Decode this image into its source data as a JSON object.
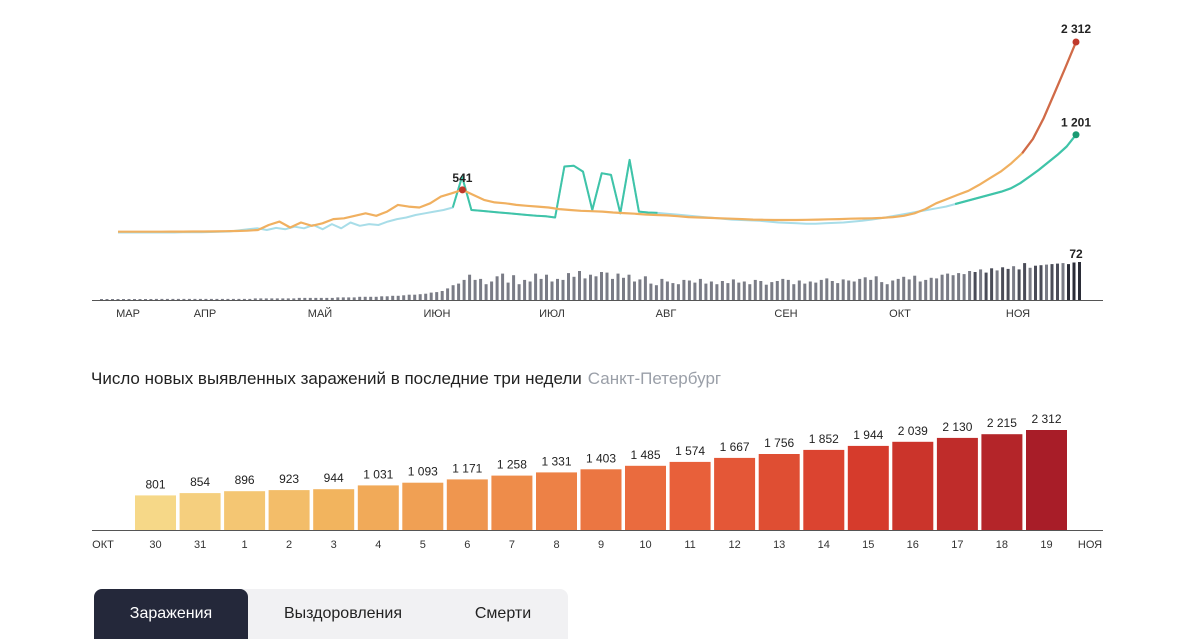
{
  "chart_data": [
    {
      "type": "line",
      "x_axis_labels": [
        "МАР",
        "АПР",
        "МАЙ",
        "ИЮН",
        "ИЮЛ",
        "АВГ",
        "СЕН",
        "ОКТ",
        "НОЯ"
      ],
      "series": [
        {
          "color": "#f0b060",
          "end_color": "#c0392b",
          "values": [
            40,
            40,
            40,
            40,
            40,
            41,
            41,
            42,
            42,
            43,
            45,
            48,
            52,
            60,
            120,
            160,
            90,
            150,
            110,
            140,
            190,
            200,
            230,
            260,
            230,
            280,
            360,
            340,
            330,
            380,
            460,
            500,
            541,
            480,
            420,
            390,
            380,
            360,
            350,
            340,
            330,
            310,
            300,
            290,
            285,
            280,
            270,
            262,
            255,
            245,
            240,
            235,
            225,
            215,
            210,
            205,
            200,
            195,
            190,
            185,
            182,
            180,
            180,
            180,
            182,
            185,
            188,
            190,
            195,
            198,
            200,
            205,
            215,
            230,
            260,
            310,
            380,
            430,
            480,
            530,
            600,
            680,
            760,
            860,
            980,
            1150,
            1400,
            1700,
            2000,
            2312
          ],
          "max_label": "541",
          "max_index": 32,
          "last_label": "2 312"
        },
        {
          "color": "#a8dde8",
          "accent_color": "#3fc4a8",
          "end_color": "#1a9a72",
          "values": [
            30,
            30,
            30,
            30,
            30,
            30,
            30,
            32,
            32,
            34,
            36,
            38,
            42,
            55,
            70,
            80,
            60,
            85,
            70,
            100,
            80,
            120,
            70,
            130,
            80,
            150,
            110,
            130,
            120,
            160,
            190,
            210,
            240,
            260,
            280,
            300,
            330,
            700,
            300,
            290,
            280,
            270,
            260,
            250,
            240,
            230,
            225,
            210,
            820,
            830,
            760,
            300,
            740,
            720,
            260,
            900,
            280,
            270,
            265,
            255,
            245,
            235,
            225,
            215,
            205,
            195,
            185,
            180,
            175,
            170,
            160,
            150,
            145,
            140,
            135,
            135,
            140,
            145,
            150,
            160,
            170,
            185,
            200,
            220,
            240,
            260,
            280,
            300,
            320,
            340,
            370,
            400,
            430,
            460,
            490,
            520,
            560,
            620,
            700,
            780,
            870,
            960,
            1060,
            1201
          ],
          "accent_start": 36,
          "accent_end": 58,
          "last_label": "1 201"
        },
        {
          "type": "bar",
          "color": "#7a7c86",
          "last_color": "#2b2d38",
          "values": [
            1,
            1,
            1,
            1,
            1,
            1,
            1,
            1,
            1,
            1,
            2,
            2,
            2,
            2,
            2,
            2,
            2,
            2,
            2,
            2,
            2,
            2,
            2,
            2,
            2,
            2,
            2,
            2,
            3,
            3,
            3,
            3,
            3,
            3,
            3,
            3,
            4,
            4,
            4,
            4,
            4,
            4,
            4,
            5,
            5,
            5,
            5,
            6,
            6,
            6,
            6,
            7,
            7,
            8,
            8,
            9,
            10,
            10,
            11,
            12,
            14,
            15,
            17,
            22,
            28,
            31,
            38,
            48,
            38,
            40,
            30,
            35,
            45,
            50,
            33,
            47,
            30,
            38,
            35,
            50,
            40,
            48,
            35,
            40,
            38,
            51,
            44,
            55,
            41,
            48,
            45,
            53,
            52,
            40,
            50,
            42,
            48,
            35,
            39,
            45,
            31,
            28,
            40,
            35,
            32,
            30,
            38,
            37,
            33,
            40,
            31,
            35,
            30,
            36,
            32,
            39,
            33,
            35,
            30,
            38,
            36,
            29,
            34,
            36,
            40,
            38,
            30,
            37,
            31,
            35,
            33,
            38,
            41,
            36,
            32,
            39,
            37,
            35,
            40,
            43,
            38,
            45,
            34,
            30,
            37,
            40,
            44,
            39,
            46,
            35,
            38,
            42,
            41,
            48,
            50,
            47,
            51,
            49,
            55,
            53,
            58,
            52,
            60,
            56,
            62,
            59,
            64,
            58,
            70,
            61,
            65,
            66,
            67,
            68,
            69,
            70,
            68,
            71,
            72
          ],
          "last_label": "72"
        }
      ]
    },
    {
      "type": "bar",
      "title": "Число новых выявленных заражений в последние три недели",
      "region": "Санкт-Петербург",
      "start_month": "ОКТ",
      "end_month": "НОЯ",
      "categories": [
        "30",
        "31",
        "1",
        "2",
        "3",
        "4",
        "5",
        "6",
        "7",
        "8",
        "9",
        "10",
        "11",
        "12",
        "13",
        "14",
        "15",
        "16",
        "17",
        "18",
        "19"
      ],
      "values": [
        801,
        854,
        896,
        923,
        944,
        1031,
        1093,
        1171,
        1258,
        1331,
        1403,
        1485,
        1574,
        1667,
        1756,
        1852,
        1944,
        2039,
        2130,
        2215,
        2312
      ],
      "value_labels": [
        "801",
        "854",
        "896",
        "923",
        "944",
        "1 031",
        "1 093",
        "1 171",
        "1 258",
        "1 331",
        "1 403",
        "1 485",
        "1 574",
        "1 667",
        "1 756",
        "1 852",
        "1 944",
        "2 039",
        "2 130",
        "2 215",
        "2 312"
      ],
      "weekend_days": [
        "31",
        "1",
        "7",
        "8",
        "14",
        "15"
      ],
      "weekend_color": "#d23b2a",
      "color_scale": [
        "#f6d888",
        "#f2b45e",
        "#ee8c4a",
        "#e8603a",
        "#d63b2c",
        "#a81d28"
      ]
    }
  ],
  "tabs": [
    {
      "label": "Заражения",
      "active": true
    },
    {
      "label": "Выздоровления",
      "active": false
    },
    {
      "label": "Смерти",
      "active": false
    }
  ]
}
